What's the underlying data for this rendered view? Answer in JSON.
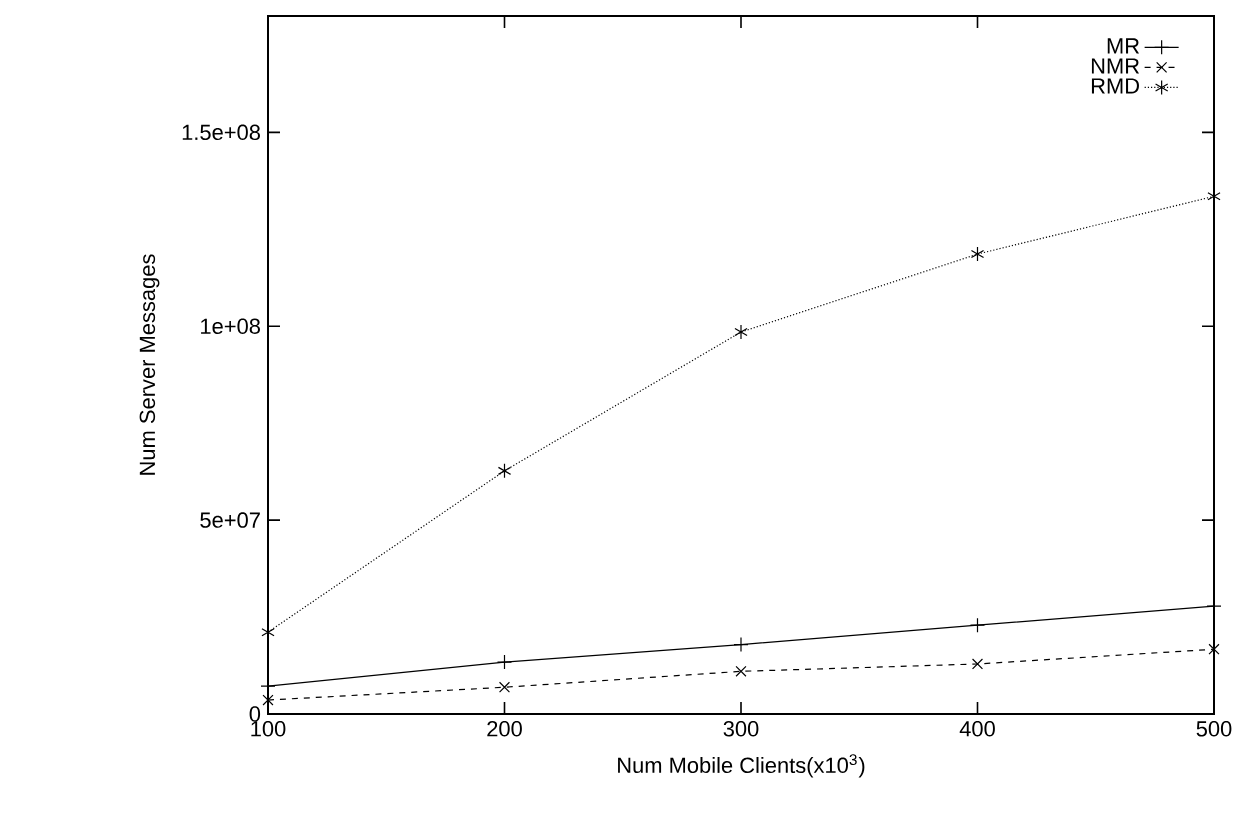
{
  "chart_data": {
    "type": "line",
    "xlabel": "Num Mobile Clients(x10$^{3}$)",
    "ylabel": "Num Server Messages",
    "x": [
      100,
      200,
      300,
      400,
      500
    ],
    "series": [
      {
        "name": "MR",
        "color": "#000000",
        "marker": "plus",
        "line_style": "solid",
        "values": [
          7200000,
          13400000,
          17900000,
          22900000,
          27800000
        ]
      },
      {
        "name": "NMR",
        "color": "#000000",
        "marker": "x",
        "line_style": "dashed",
        "values": [
          3600000,
          6900000,
          11000000,
          12900000,
          16700000
        ]
      },
      {
        "name": "RMD",
        "color": "#000000",
        "marker": "cross",
        "line_style": "dotted",
        "values": [
          21100000,
          62700000,
          98500000,
          118600000,
          133500000
        ]
      }
    ],
    "xlim": [
      100,
      500
    ],
    "ylim": [
      0,
      180000000
    ],
    "xticks": [
      100,
      200,
      300,
      400,
      500
    ],
    "yticks": [
      0,
      {
        "value": 50000000,
        "label": "5e+07"
      },
      {
        "value": 100000000,
        "label": "1e+08"
      },
      {
        "value": 150000000,
        "label": "1.5e+08"
      }
    ],
    "grid": false,
    "legend": "top right"
  }
}
